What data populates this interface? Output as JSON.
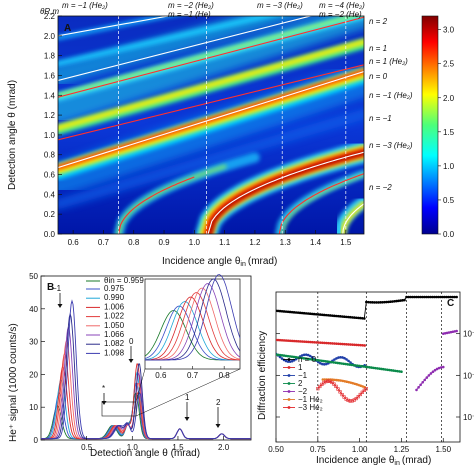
{
  "panel_a": {
    "label": "A",
    "corner_label": "θR,m",
    "xlabel": "Incidence angle θ",
    "xlabel_sub": "in",
    "xlabel_unit": "(mrad)",
    "ylabel": "Detection angle θ (mrad)",
    "x_ticks": [
      "0.6",
      "0.7",
      "0.8",
      "0.9",
      "1.0",
      "1.1",
      "1.2",
      "1.3",
      "1.4",
      "1.5"
    ],
    "y_ticks": [
      "0.0",
      "0.2",
      "0.4",
      "0.6",
      "0.8",
      "1.0",
      "1.2",
      "1.4",
      "1.6",
      "1.8",
      "2.0",
      "2.2"
    ],
    "top_labels": [
      {
        "text": "m = −1 (He₂)",
        "red": true
      },
      {
        "text": "m = −2 (He₂)",
        "red": true
      },
      {
        "text": "m = −1 (He)",
        "red": false
      },
      {
        "text": "m = −3 (He₂)",
        "red": true
      },
      {
        "text": "m = −4 (He₂)",
        "red": true
      },
      {
        "text": "m = −2 (He)",
        "red": false
      }
    ],
    "right_labels": [
      {
        "text": "n = 2",
        "red": false
      },
      {
        "text": "n = 1",
        "red": false
      },
      {
        "text": "n = 1 (He₂)",
        "red": true
      },
      {
        "text": "n = 0",
        "red": false
      },
      {
        "text": "n = −1 (He₂)",
        "red": true
      },
      {
        "text": "n = −1",
        "red": false
      },
      {
        "text": "n = −3 (He₂)",
        "red": true
      },
      {
        "text": "n = −2",
        "red": false
      }
    ],
    "colorbar_ticks": [
      "0.0",
      "0.5",
      "1.0",
      "1.5",
      "2.0",
      "2.5",
      "3.0"
    ]
  },
  "panel_b": {
    "label": "B",
    "xlabel": "Detection angle θ (mrad)",
    "ylabel": "He⁺ signal (1000 counts/s)",
    "x_ticks": [
      "0.5",
      "1.0",
      "1.5",
      "2.0"
    ],
    "y_ticks": [
      "0",
      "10",
      "20",
      "30",
      "40",
      "50"
    ],
    "legend_title": "θin = 0.959",
    "legend_entries": [
      "0.975",
      "0.990",
      "1.006",
      "1.022",
      "1.050",
      "1.066",
      "1.082",
      "1.098"
    ],
    "peak_labels": [
      "−1",
      "*",
      "0",
      "1",
      "2"
    ],
    "inset_x_ticks": [
      "0.6",
      "0.7",
      "0.8"
    ]
  },
  "panel_c": {
    "label": "C",
    "xlabel": "Incidence angle θ",
    "xlabel_sub": "in",
    "xlabel_unit": "(mrad)",
    "ylabel": "Diffraction efficiency",
    "x_ticks": [
      "0.50",
      "0.75",
      "1.00",
      "1.25",
      "1.50"
    ],
    "y_ticks": [
      "10⁻³",
      "10⁻²",
      "10⁻¹"
    ],
    "legend": [
      {
        "label": "n = 0",
        "color": "#000000"
      },
      {
        "label": "1",
        "color": "#d8282a"
      },
      {
        "label": "−1",
        "color": "#1f3ea8"
      },
      {
        "label": "2",
        "color": "#0a8a4a"
      },
      {
        "label": "−2",
        "color": "#8e2db0"
      },
      {
        "label": "−1 He₂",
        "color": "#e37b27"
      },
      {
        "label": "−3 He₂",
        "color": "#e2262a"
      }
    ]
  },
  "chart_data": [
    {
      "type": "heatmap",
      "panel": "A",
      "xlabel": "Incidence angle θin (mrad)",
      "ylabel": "Detection angle θ (mrad)",
      "xlim": [
        0.55,
        1.56
      ],
      "ylim": [
        0.0,
        2.2
      ],
      "zlim": [
        0.0,
        3.2
      ],
      "vertical_lines": [
        0.75,
        1.04,
        1.29,
        1.5
      ]
    },
    {
      "type": "line",
      "panel": "B",
      "xlim": [
        0.0,
        2.3
      ],
      "ylim": [
        0,
        50
      ],
      "peaks_approx": [
        {
          "x": 0.32,
          "y": 42
        },
        {
          "x": 1.05,
          "y": 23
        },
        {
          "x": 1.52,
          "y": 3
        },
        {
          "x": 1.98,
          "y": 1.5
        }
      ]
    },
    {
      "type": "scatter",
      "panel": "C",
      "xlim": [
        0.5,
        1.6
      ],
      "y_scale": "log",
      "vertical_lines": [
        0.75,
        1.04,
        1.28,
        1.49
      ]
    }
  ]
}
